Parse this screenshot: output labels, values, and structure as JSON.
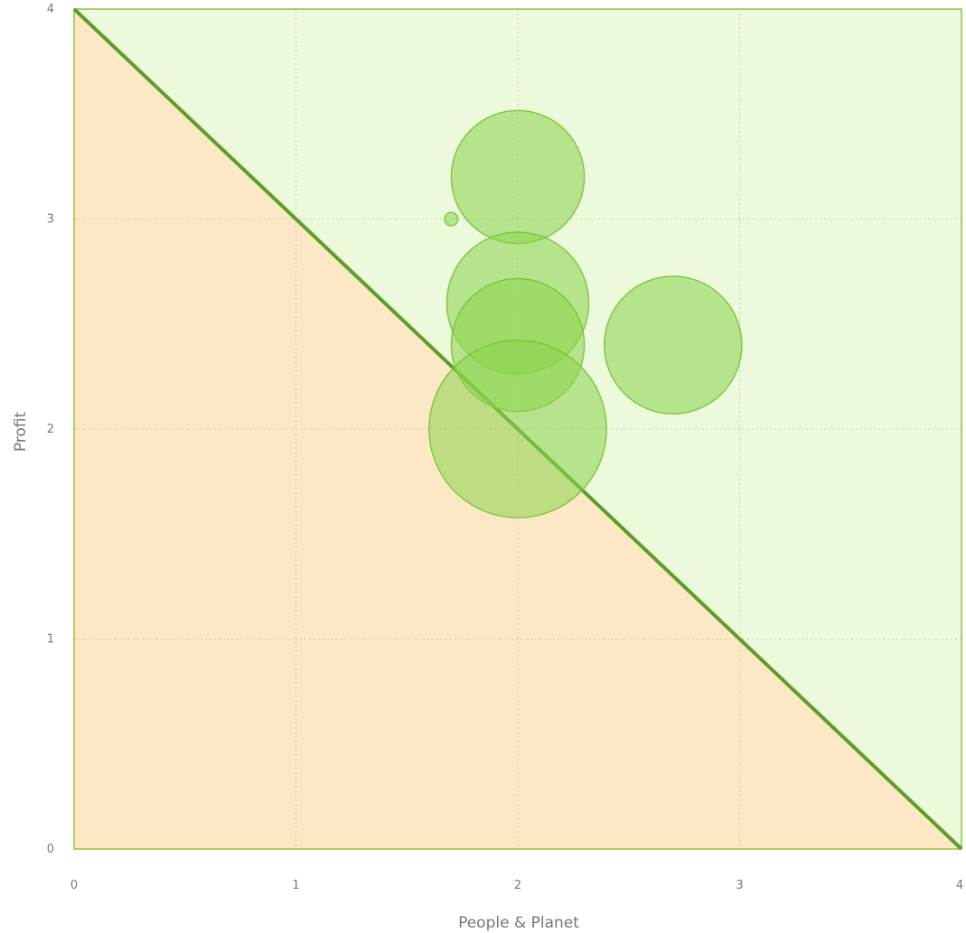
{
  "chart_data": {
    "type": "scatter",
    "subtype": "bubble",
    "title": "",
    "xlabel": "People & Planet",
    "ylabel": "Profit",
    "xlim": [
      0,
      4
    ],
    "ylim": [
      0,
      4
    ],
    "x_ticks": [
      "0",
      "1",
      "2",
      "3",
      "4"
    ],
    "y_ticks": [
      "0",
      "1",
      "2",
      "3",
      "4"
    ],
    "grid": true,
    "legend": "none",
    "regions": [
      {
        "name": "upper-region",
        "color": "#ecf9db"
      },
      {
        "name": "lower-region",
        "color": "#fde8c6"
      }
    ],
    "diagonal_line": {
      "from": [
        0,
        4
      ],
      "to": [
        4,
        0
      ],
      "color": "#5c9e2a"
    },
    "bubble_color": "#8bd34a",
    "series": [
      {
        "points": [
          {
            "x": 2.0,
            "y": 3.2,
            "r": 0.3
          },
          {
            "x": 1.7,
            "y": 3.0,
            "r": 0.03
          },
          {
            "x": 2.0,
            "y": 2.6,
            "r": 0.32
          },
          {
            "x": 2.0,
            "y": 2.4,
            "r": 0.3
          },
          {
            "x": 2.7,
            "y": 2.4,
            "r": 0.31
          },
          {
            "x": 2.0,
            "y": 2.0,
            "r": 0.4
          }
        ]
      }
    ]
  }
}
